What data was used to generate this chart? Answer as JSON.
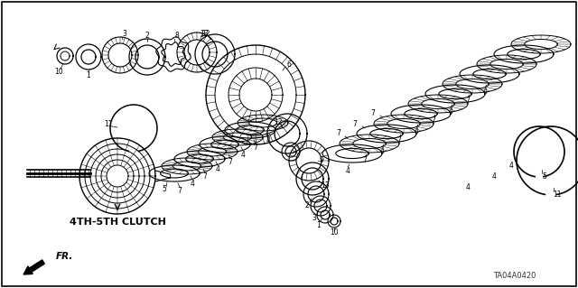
{
  "background_color": "#ffffff",
  "border_color": "#000000",
  "label_4th_5th": "4TH-5TH CLUTCH",
  "diagram_code": "TA04A0420",
  "fig_width": 6.4,
  "fig_height": 3.19,
  "dpi": 100,
  "line_color": "#000000",
  "label_color": "#000000",
  "fr_label": "FR.",
  "gray_color": "#555555",
  "mid_gray": "#888888"
}
